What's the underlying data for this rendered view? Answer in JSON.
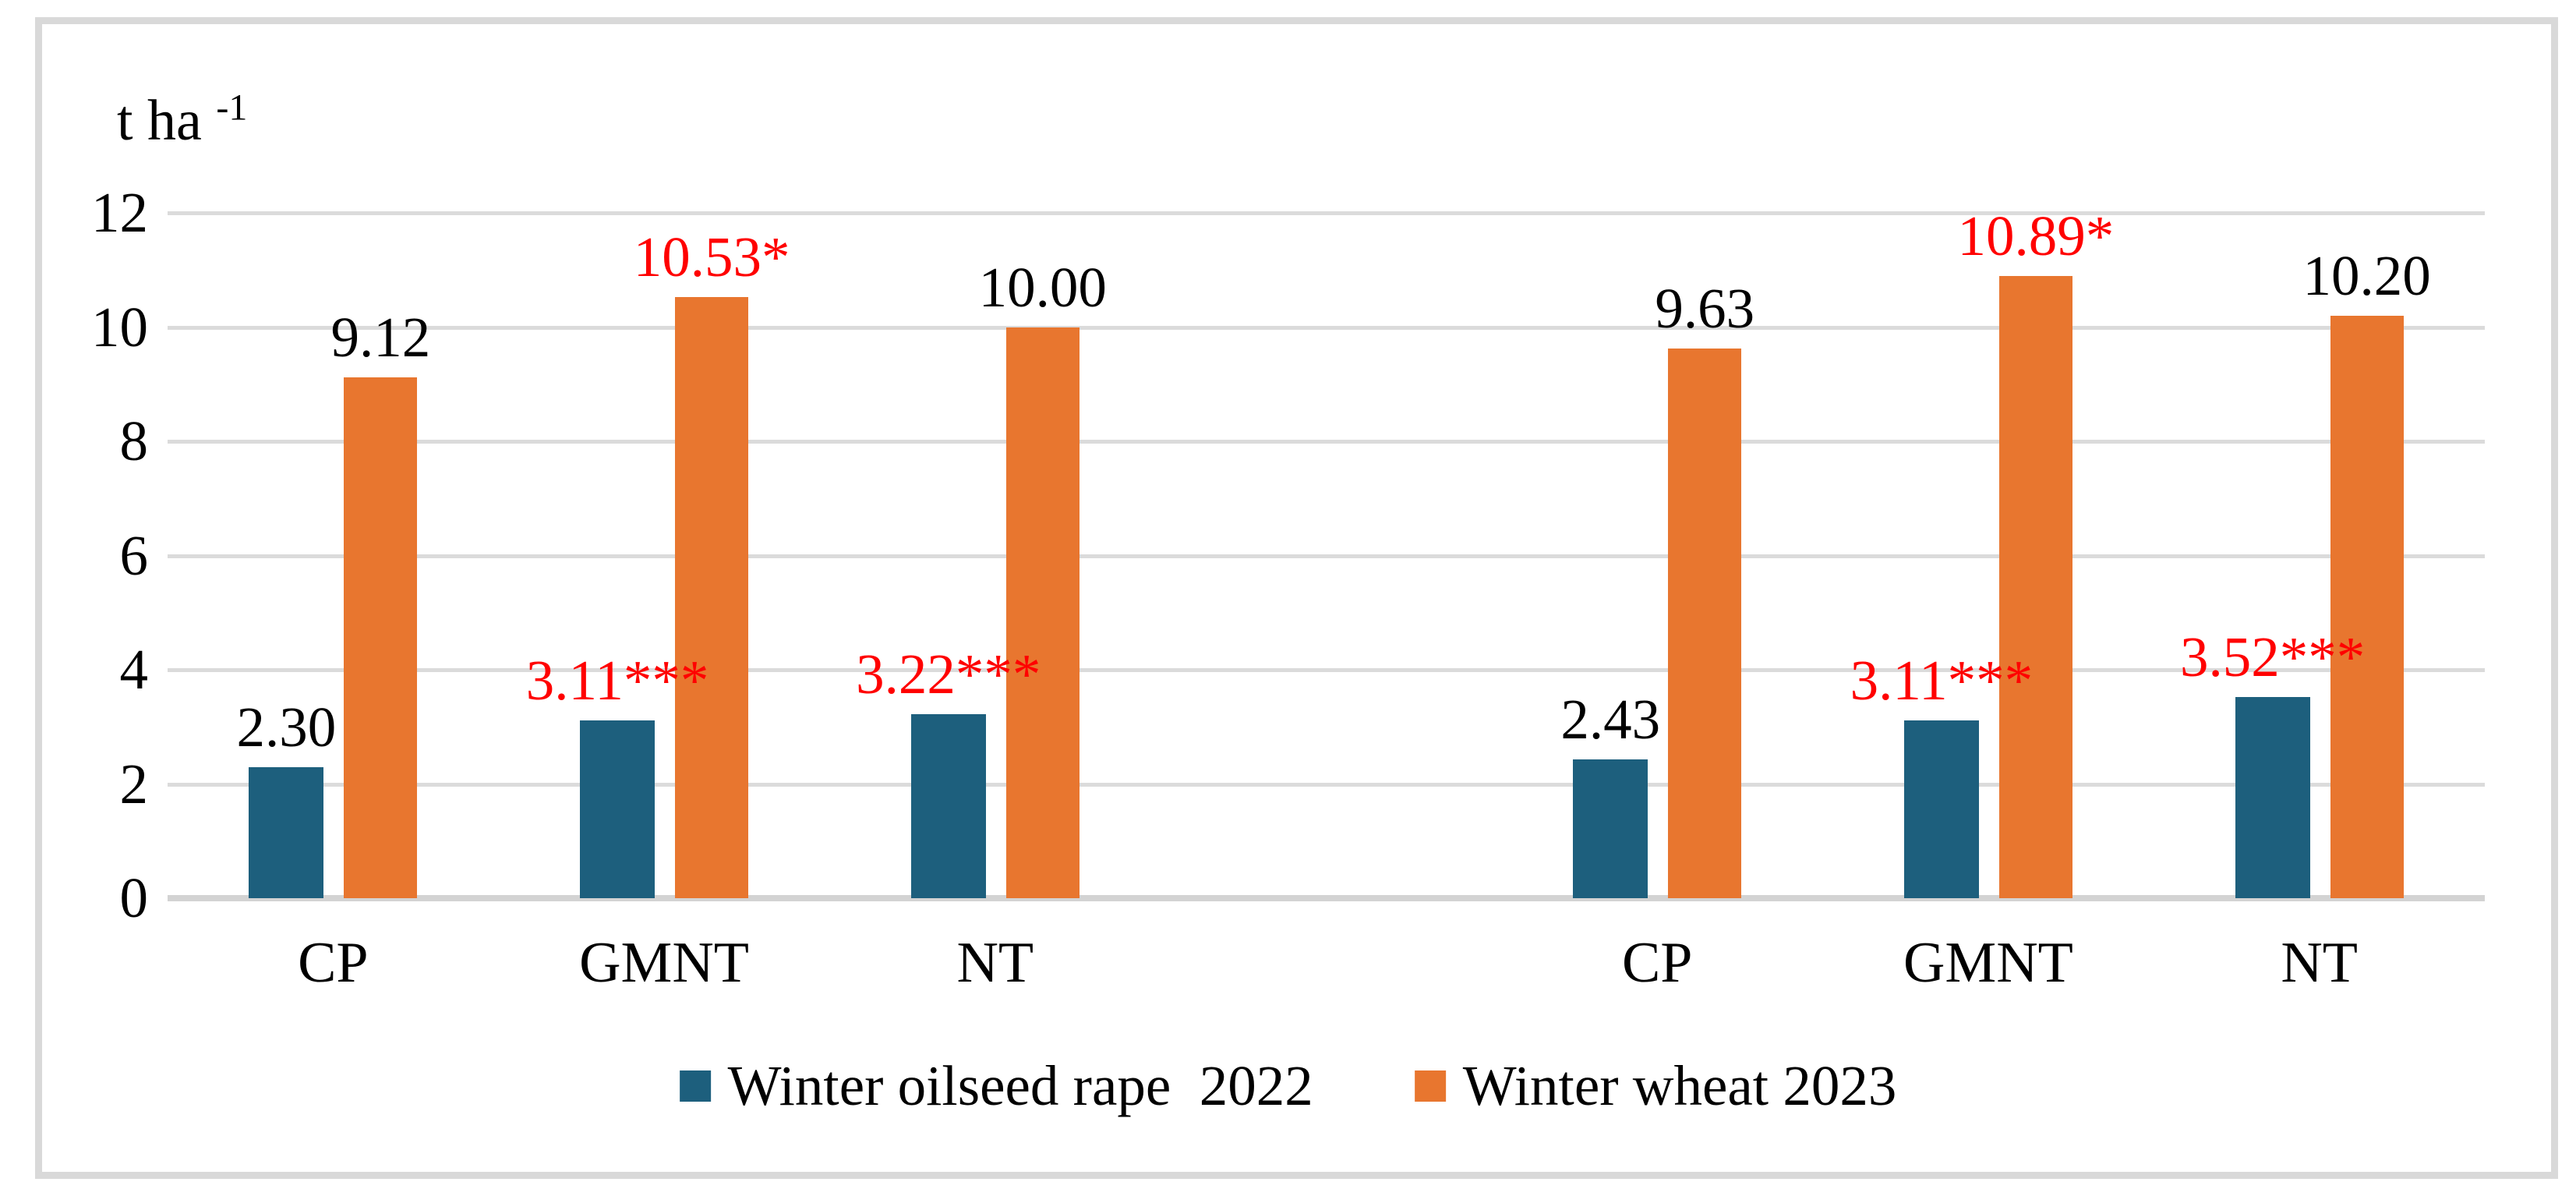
{
  "unit_label": {
    "base": "t ha",
    "exponent": "-1"
  },
  "colors": {
    "series_rape": "#1D5F7D",
    "series_wheat": "#E8762F",
    "significant_label": "#FF0000",
    "normal_label": "#000000",
    "gridline": "#DBDBDB",
    "axis_line": "#D3D3D3",
    "frame_border": "#D9D9D9"
  },
  "legend": {
    "items": [
      {
        "label": "Winter oilseed rape  2022",
        "color_key": "series_rape"
      },
      {
        "label": "Winter wheat 2023",
        "color_key": "series_wheat"
      }
    ]
  },
  "chart_data": {
    "type": "bar",
    "title": "",
    "ylabel": "t ha -1",
    "xlabel": "",
    "ylim": [
      0,
      12
    ],
    "yticks": [
      0,
      2,
      4,
      6,
      8,
      10,
      12
    ],
    "grid": true,
    "legend_position": "bottom",
    "slot_count": 7,
    "series": [
      {
        "name": "Winter oilseed rape  2022",
        "color": "#1D5F7D",
        "values": [
          2.3,
          3.11,
          3.22,
          2.43,
          3.11,
          3.52
        ]
      },
      {
        "name": "Winter wheat 2023",
        "color": "#E8762F",
        "values": [
          9.12,
          10.53,
          10.0,
          9.63,
          10.89,
          10.2
        ]
      }
    ],
    "groups": [
      {
        "category": "CP",
        "slot": 0,
        "bars": [
          {
            "series": 0,
            "value": 2.3,
            "label": "2.30",
            "label_color": "normal_label"
          },
          {
            "series": 1,
            "value": 9.12,
            "label": "9.12",
            "label_color": "normal_label"
          }
        ]
      },
      {
        "category": "GMNT",
        "slot": 1,
        "bars": [
          {
            "series": 0,
            "value": 3.11,
            "label": "3.11***",
            "label_color": "significant_label"
          },
          {
            "series": 1,
            "value": 10.53,
            "label": "10.53*",
            "label_color": "significant_label"
          }
        ]
      },
      {
        "category": "NT",
        "slot": 2,
        "bars": [
          {
            "series": 0,
            "value": 3.22,
            "label": "3.22***",
            "label_color": "significant_label"
          },
          {
            "series": 1,
            "value": 10.0,
            "label": "10.00",
            "label_color": "normal_label"
          }
        ]
      },
      {
        "category": "CP",
        "slot": 4,
        "bars": [
          {
            "series": 0,
            "value": 2.43,
            "label": "2.43",
            "label_color": "normal_label"
          },
          {
            "series": 1,
            "value": 9.63,
            "label": "9.63",
            "label_color": "normal_label"
          }
        ]
      },
      {
        "category": "GMNT",
        "slot": 5,
        "bars": [
          {
            "series": 0,
            "value": 3.11,
            "label": "3.11***",
            "label_color": "significant_label"
          },
          {
            "series": 1,
            "value": 10.89,
            "label": "10.89*",
            "label_color": "significant_label"
          }
        ]
      },
      {
        "category": "NT",
        "slot": 6,
        "bars": [
          {
            "series": 0,
            "value": 3.52,
            "label": "3.52***",
            "label_color": "significant_label"
          },
          {
            "series": 1,
            "value": 10.2,
            "label": "10.20",
            "label_color": "normal_label"
          }
        ]
      }
    ]
  }
}
